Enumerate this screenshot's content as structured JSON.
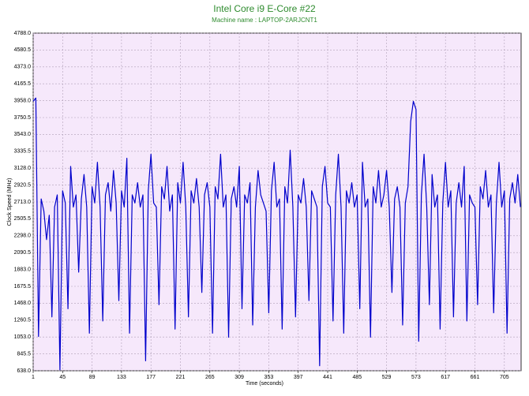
{
  "chart_data": {
    "type": "line",
    "title": "Intel Core i9 E-Core #22",
    "subtitle": "Machine name : LAPTOP-2ARJCNT1",
    "x_label": "Time (seconds)",
    "y_label": "Clock Speed (MHz)",
    "color": "#0000cc",
    "grid": true,
    "xlim": [
      1,
      730
    ],
    "ylim": [
      638,
      4788
    ],
    "xticks": [
      1,
      45,
      89,
      133,
      177,
      221,
      265,
      309,
      353,
      397,
      441,
      485,
      529,
      573,
      617,
      661,
      705
    ],
    "yticks": [
      {
        "value": 638,
        "label": "638.0"
      },
      845.5,
      {
        "value": 1053,
        "label": "1053.0"
      },
      1260.5,
      {
        "value": 1468,
        "label": "1468.0"
      },
      1675.5,
      {
        "value": 1883,
        "label": "1883.0"
      },
      2090.5,
      {
        "value": 2298,
        "label": "2298.0"
      },
      2505.5,
      {
        "value": 2713,
        "label": "2713.0"
      },
      2920.5,
      {
        "value": 3128,
        "label": "3128.0"
      },
      3335.5,
      {
        "value": 3543,
        "label": "3543.0"
      },
      3750.5,
      {
        "value": 3958,
        "label": "3958.0"
      },
      4165.5,
      {
        "value": 4373,
        "label": "4373.0"
      },
      4580.5,
      {
        "value": 4788,
        "label": "4788.0"
      }
    ],
    "x": [
      1,
      5,
      9,
      13,
      17,
      21,
      25,
      29,
      33,
      37,
      41,
      45,
      49,
      53,
      57,
      61,
      65,
      69,
      73,
      77,
      81,
      85,
      89,
      93,
      97,
      101,
      105,
      109,
      113,
      117,
      121,
      125,
      129,
      133,
      137,
      141,
      145,
      149,
      153,
      157,
      161,
      165,
      169,
      173,
      177,
      181,
      185,
      189,
      193,
      197,
      201,
      205,
      209,
      213,
      217,
      221,
      225,
      229,
      233,
      237,
      241,
      245,
      249,
      253,
      257,
      261,
      265,
      269,
      273,
      277,
      281,
      285,
      289,
      293,
      297,
      301,
      305,
      309,
      313,
      317,
      321,
      325,
      329,
      333,
      337,
      341,
      345,
      349,
      353,
      357,
      361,
      365,
      369,
      373,
      377,
      381,
      385,
      389,
      393,
      397,
      401,
      405,
      409,
      413,
      417,
      421,
      425,
      429,
      433,
      437,
      441,
      445,
      449,
      453,
      457,
      461,
      465,
      469,
      473,
      477,
      481,
      485,
      489,
      493,
      497,
      501,
      505,
      509,
      513,
      517,
      521,
      525,
      529,
      533,
      537,
      541,
      545,
      549,
      553,
      557,
      561,
      565,
      569,
      573,
      577,
      581,
      585,
      589,
      593,
      597,
      601,
      605,
      609,
      613,
      617,
      621,
      625,
      629,
      633,
      637,
      641,
      645,
      649,
      653,
      657,
      661,
      665,
      669,
      673,
      677,
      681,
      685,
      689,
      693,
      697,
      701,
      705,
      709,
      713,
      717,
      721,
      725,
      729
    ],
    "values": [
      3950,
      3990,
      1060,
      2750,
      2600,
      2250,
      2550,
      1300,
      2650,
      2800,
      650,
      2850,
      2700,
      1400,
      3150,
      2650,
      2800,
      1850,
      2750,
      3050,
      2650,
      1100,
      2900,
      2700,
      3200,
      2650,
      1250,
      2800,
      2950,
      2600,
      3100,
      2700,
      1500,
      2850,
      2650,
      3250,
      1100,
      2800,
      2700,
      2950,
      2650,
      2800,
      760,
      2850,
      3300,
      2700,
      2650,
      1450,
      2900,
      2750,
      3150,
      2600,
      2800,
      1150,
      2950,
      2700,
      3200,
      2650,
      1300,
      2850,
      2700,
      3000,
      2650,
      1600,
      2800,
      2950,
      2650,
      1100,
      2900,
      2750,
      3300,
      2650,
      2800,
      1050,
      2750,
      2900,
      2650,
      3150,
      1400,
      2800,
      2700,
      2950,
      1200,
      2650,
      3100,
      2800,
      2700,
      2600,
      1350,
      2850,
      3200,
      2650,
      2750,
      1150,
      2900,
      2700,
      3350,
      2650,
      1300,
      2800,
      2700,
      3000,
      2650,
      1500,
      2850,
      2750,
      2650,
      700,
      2900,
      3150,
      2700,
      2650,
      1250,
      2800,
      3300,
      2650,
      1100,
      2850,
      2700,
      2950,
      2650,
      2800,
      1400,
      3200,
      2650,
      2750,
      1050,
      2900,
      2700,
      3100,
      2650,
      2800,
      3100,
      2650,
      1600,
      2750,
      2900,
      2650,
      1200,
      2700,
      2900,
      3700,
      3950,
      3850,
      1000,
      2800,
      3300,
      2650,
      1450,
      3050,
      2650,
      2800,
      1150,
      2700,
      3200,
      2650,
      2850,
      1300,
      2700,
      2950,
      2650,
      3150,
      1250,
      2800,
      2700,
      2650,
      1450,
      2900,
      2750,
      3100,
      2650,
      2800,
      1350,
      2700,
      3200,
      2650,
      2850,
      1100,
      2750,
      2950,
      2700,
      3050,
      2650
    ]
  }
}
